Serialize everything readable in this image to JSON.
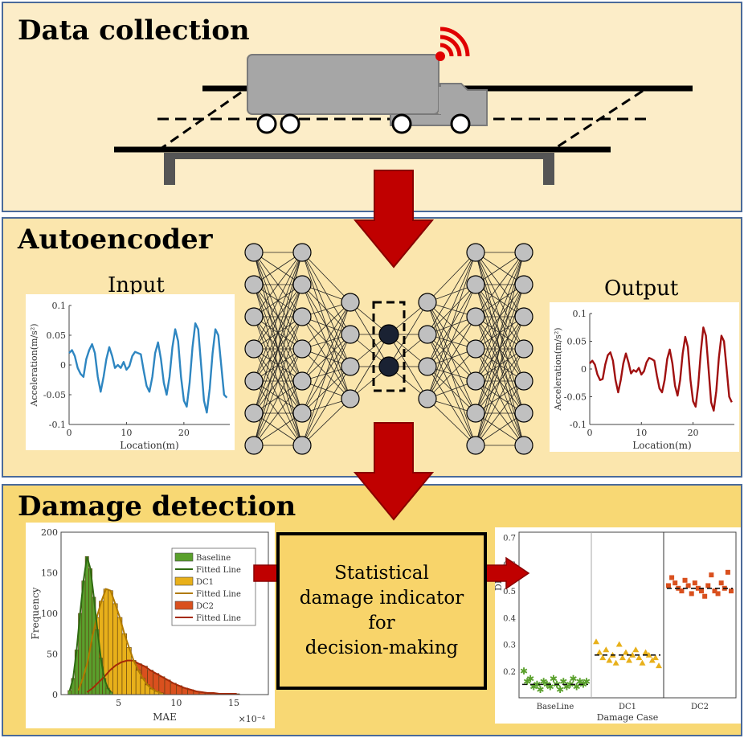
{
  "sections": {
    "data_collection": "Data collection",
    "autoencoder": "Autoencoder",
    "damage_detection": "Damage detection"
  },
  "labels": {
    "input": "Input",
    "output": "Output",
    "statistical_box": "Statistical\ndamage indicator\nfor\ndecision-making"
  },
  "colors": {
    "arrow": "#c00000",
    "baseline": "#5aa02c",
    "dc1": "#e8b01a",
    "dc2": "#d9501e",
    "input_signal": "#2e86c1",
    "output_signal": "#a01010"
  },
  "chart_data": [
    {
      "type": "line",
      "name": "input",
      "xlabel": "Location(m)",
      "ylabel": "Acceleration(m/s²)",
      "xlim": [
        0,
        28
      ],
      "ylim": [
        -0.1,
        0.1
      ],
      "xticks": [
        "0",
        "10",
        "20"
      ],
      "yticks": [
        "0.1",
        "0.05",
        "0",
        "-0.05",
        "-0.1"
      ],
      "x": [
        0,
        0.5,
        1,
        1.5,
        2,
        2.5,
        3,
        3.5,
        4,
        4.5,
        5,
        5.5,
        6,
        6.5,
        7,
        7.5,
        8,
        8.5,
        9,
        9.5,
        10,
        10.5,
        11,
        11.5,
        12,
        12.5,
        13,
        13.5,
        14,
        14.5,
        15,
        15.5,
        16,
        16.5,
        17,
        17.5,
        18,
        18.5,
        19,
        19.5,
        20,
        20.5,
        21,
        21.5,
        22,
        22.5,
        23,
        23.5,
        24,
        24.5,
        25,
        25.5,
        26,
        26.5,
        27,
        27.5
      ],
      "y": [
        0.02,
        0.025,
        0.015,
        -0.005,
        -0.015,
        -0.02,
        0.01,
        0.025,
        0.035,
        0.02,
        -0.02,
        -0.045,
        -0.02,
        0.01,
        0.03,
        0.015,
        -0.005,
        0,
        -0.005,
        0.005,
        -0.008,
        -0.002,
        0.015,
        0.022,
        0.02,
        0.018,
        -0.01,
        -0.035,
        -0.045,
        -0.02,
        0.02,
        0.038,
        0.01,
        -0.03,
        -0.05,
        -0.02,
        0.03,
        0.06,
        0.04,
        -0.02,
        -0.06,
        -0.07,
        -0.03,
        0.03,
        0.07,
        0.06,
        0.0,
        -0.06,
        -0.08,
        -0.04,
        0.02,
        0.06,
        0.05,
        0,
        -0.05,
        -0.055
      ]
    },
    {
      "type": "line",
      "name": "output",
      "xlabel": "Location(m)",
      "ylabel": "Acceleration(m/s²)",
      "xlim": [
        0,
        28
      ],
      "ylim": [
        -0.1,
        0.1
      ],
      "xticks": [
        "0",
        "10",
        "20"
      ],
      "yticks": [
        "0.1",
        "0.05",
        "0",
        "-0.05",
        "-0.1"
      ],
      "x": [
        0,
        0.5,
        1,
        1.5,
        2,
        2.5,
        3,
        3.5,
        4,
        4.5,
        5,
        5.5,
        6,
        6.5,
        7,
        7.5,
        8,
        8.5,
        9,
        9.5,
        10,
        10.5,
        11,
        11.5,
        12,
        12.5,
        13,
        13.5,
        14,
        14.5,
        15,
        15.5,
        16,
        16.5,
        17,
        17.5,
        18,
        18.5,
        19,
        19.5,
        20,
        20.5,
        21,
        21.5,
        22,
        22.5,
        23,
        23.5,
        24,
        24.5,
        25,
        25.5,
        26,
        26.5,
        27,
        27.5
      ],
      "y": [
        0.01,
        0.015,
        0.008,
        -0.01,
        -0.02,
        -0.018,
        0.008,
        0.025,
        0.03,
        0.015,
        -0.02,
        -0.042,
        -0.02,
        0.01,
        0.028,
        0.012,
        -0.008,
        -0.002,
        -0.005,
        0.002,
        -0.01,
        -0.004,
        0.012,
        0.02,
        0.018,
        0.015,
        -0.012,
        -0.035,
        -0.042,
        -0.02,
        0.018,
        0.035,
        0.01,
        -0.03,
        -0.048,
        -0.02,
        0.028,
        0.058,
        0.04,
        -0.02,
        -0.058,
        -0.068,
        -0.03,
        0.03,
        0.075,
        0.06,
        0.0,
        -0.06,
        -0.075,
        -0.04,
        0.02,
        0.06,
        0.05,
        0,
        -0.05,
        -0.06
      ]
    },
    {
      "type": "bar",
      "name": "histogram",
      "xlabel": "MAE",
      "ylabel": "Frequency",
      "xlim": [
        0,
        18
      ],
      "ylim": [
        0,
        200
      ],
      "xticks": [
        "5",
        "10",
        "15"
      ],
      "yticks": [
        "200",
        "150",
        "100",
        "50",
        "0"
      ],
      "exponent": "×10⁻⁴",
      "legend": [
        "Baseline",
        "Fitted Line",
        "DC1",
        "Fitted Line",
        "DC2",
        "Fitted Line"
      ],
      "legend_position": "top-right",
      "series": [
        {
          "name": "Baseline",
          "bin_start": 0.6,
          "bin_width": 0.3,
          "counts": [
            5,
            20,
            55,
            100,
            140,
            170,
            155,
            120,
            80,
            45,
            20,
            8,
            3
          ]
        },
        {
          "name": "DC1",
          "bin_start": 1.3,
          "bin_width": 0.4,
          "counts": [
            5,
            20,
            40,
            70,
            95,
            115,
            130,
            128,
            112,
            95,
            75,
            58,
            42,
            30,
            20,
            12,
            7,
            4,
            2
          ]
        },
        {
          "name": "DC2",
          "bin_start": 2.0,
          "bin_width": 0.5,
          "counts": [
            3,
            8,
            15,
            22,
            30,
            36,
            40,
            42,
            42,
            38,
            35,
            30,
            26,
            22,
            18,
            14,
            11,
            8,
            6,
            4,
            3,
            2,
            2,
            1,
            1,
            1,
            1
          ]
        }
      ]
    },
    {
      "type": "scatter",
      "name": "damage_indicator",
      "xlabel": "Damage Case",
      "ylabel": "DI",
      "ylim": [
        0.1,
        0.72
      ],
      "categories": [
        "BaseLine",
        "DC1",
        "DC2"
      ],
      "yticks": [
        "0.7",
        "0.6",
        "0.5",
        "0.4",
        "0.3",
        "0.2"
      ],
      "series": [
        {
          "name": "BaseLine",
          "values": [
            0.2,
            0.16,
            0.17,
            0.14,
            0.15,
            0.13,
            0.16,
            0.15,
            0.14,
            0.17,
            0.15,
            0.13,
            0.16,
            0.14,
            0.15,
            0.17,
            0.14,
            0.16,
            0.15,
            0.16
          ],
          "mean": 0.15
        },
        {
          "name": "DC1",
          "values": [
            0.31,
            0.27,
            0.25,
            0.28,
            0.24,
            0.26,
            0.23,
            0.3,
            0.25,
            0.27,
            0.24,
            0.26,
            0.28,
            0.25,
            0.23,
            0.27,
            0.26,
            0.24,
            0.25,
            0.22
          ],
          "mean": 0.26
        },
        {
          "name": "DC2",
          "values": [
            0.52,
            0.55,
            0.53,
            0.51,
            0.5,
            0.54,
            0.52,
            0.49,
            0.53,
            0.51,
            0.5,
            0.48,
            0.52,
            0.56,
            0.5,
            0.49,
            0.53,
            0.51,
            0.57,
            0.5
          ],
          "mean": 0.51
        }
      ]
    }
  ]
}
